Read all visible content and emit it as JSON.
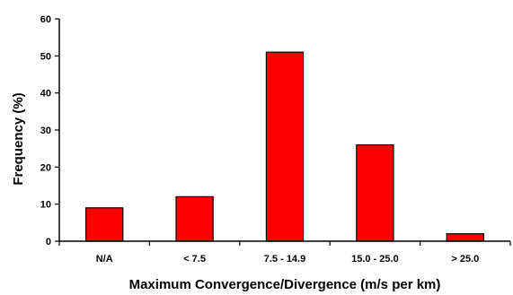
{
  "chart_data": {
    "type": "bar",
    "categories": [
      "N/A",
      "< 7.5",
      "7.5 - 14.9",
      "15.0 - 25.0",
      "> 25.0"
    ],
    "values": [
      9,
      12,
      51,
      26,
      2
    ],
    "xlabel": "Maximum Convergence/Divergence (m/s per km)",
    "ylabel": "Frequency (%)",
    "ylim": [
      0,
      60
    ],
    "yticks": [
      0,
      10,
      20,
      30,
      40,
      50,
      60
    ],
    "grid": false,
    "legend": "none",
    "bar_color": "#ff0000"
  }
}
